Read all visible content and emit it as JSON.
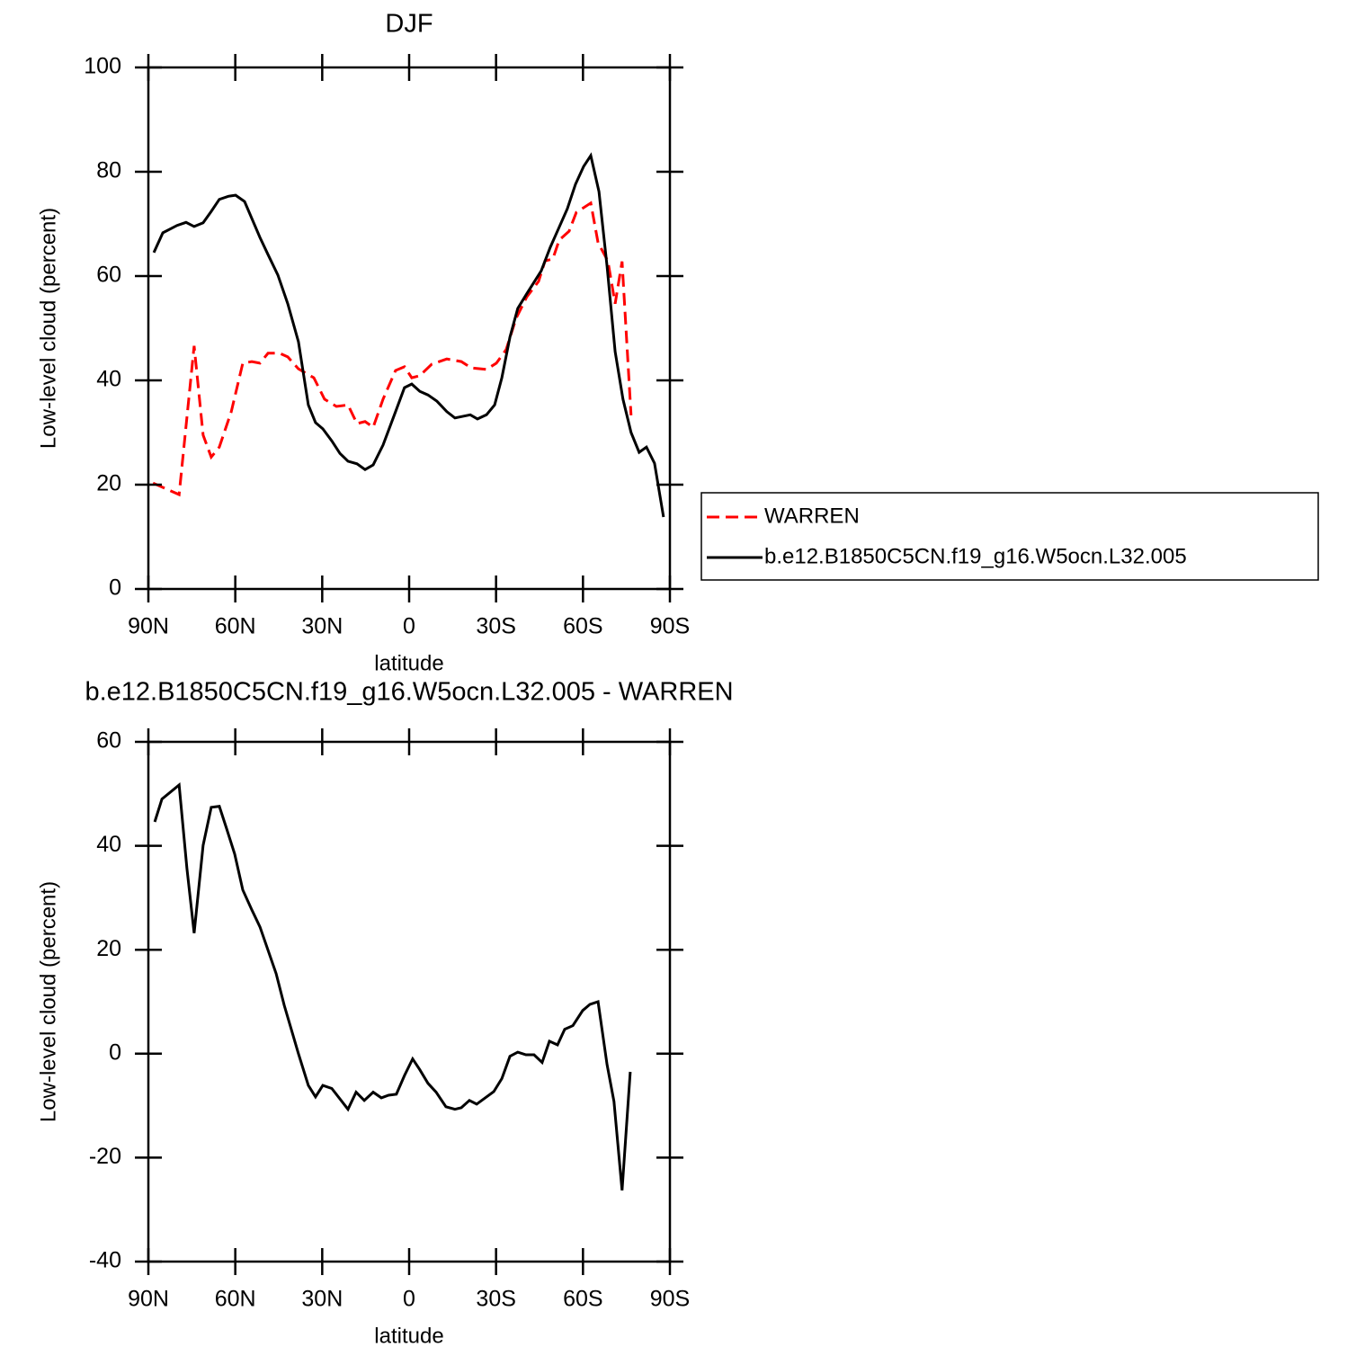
{
  "chart_data": [
    {
      "type": "line",
      "title": "DJF",
      "xlabel": "latitude",
      "ylabel": "Low-level cloud (percent)",
      "xlim": [
        90,
        -90
      ],
      "ylim": [
        0,
        100
      ],
      "xticks": [
        {
          "value": 90,
          "label": "90N"
        },
        {
          "value": 60,
          "label": "60N"
        },
        {
          "value": 30,
          "label": "30N"
        },
        0,
        {
          "value": -30,
          "label": "30S"
        },
        {
          "value": -60,
          "label": "60S"
        },
        {
          "value": -90,
          "label": "90S"
        }
      ],
      "yticks": [
        0,
        20,
        40,
        60,
        80,
        100
      ],
      "legend": "right",
      "series": [
        {
          "name": "WARREN",
          "color": "#ff0000",
          "dash": "dashed",
          "x": [
            88.4,
            79.4,
            74.2,
            71.1,
            68.3,
            65.5,
            61.4,
            57.4,
            54.3,
            51.5,
            48.7,
            44.7,
            41.9,
            38.2,
            32.9,
            29.2,
            25.1,
            21.1,
            18,
            15.2,
            12.4,
            9,
            4.7,
            1.6,
            -0.9,
            -3.7,
            -7.8,
            -13,
            -18,
            -21.4,
            -26.7,
            -30.1,
            -33.5,
            -36.9,
            -40.6,
            -44.7,
            -46.9,
            -49.6,
            -51.8,
            -55.2,
            -57.7,
            -62.7,
            -65.2,
            -68.6,
            -71.1,
            -73.5,
            -76.6
          ],
          "values": [
            20.3,
            18.1,
            46.6,
            29.5,
            25.3,
            27.2,
            34,
            43.3,
            43.6,
            43.3,
            45.2,
            45.2,
            44.5,
            42.2,
            40.5,
            36.4,
            35,
            35.3,
            31.7,
            32.1,
            31,
            36.4,
            41.9,
            42.6,
            40.5,
            40.9,
            43.1,
            44.1,
            43.6,
            42.4,
            42.1,
            43.3,
            45.9,
            51.9,
            56,
            59,
            62.9,
            63.3,
            66.9,
            68.6,
            72.2,
            74,
            66.4,
            62.9,
            54.7,
            62.8,
            33.3
          ]
        },
        {
          "name": "b.e12.B1850C5CN.f19_g16.W5ocn.L32.005",
          "color": "#000000",
          "dash": "solid",
          "x": [
            88.1,
            85,
            80.1,
            77,
            74.2,
            71.1,
            68.3,
            65.5,
            62.4,
            59.9,
            56.8,
            51.5,
            48.7,
            45.3,
            41.9,
            38.2,
            34.8,
            32.3,
            29.8,
            26.7,
            23.9,
            21.1,
            18,
            15.2,
            12.4,
            9,
            4.7,
            1.6,
            -0.9,
            -3.7,
            -6.5,
            -9.6,
            -13,
            -15.8,
            -21.1,
            -23.6,
            -26.7,
            -29.5,
            -32,
            -34.8,
            -37.5,
            -40.6,
            -45.6,
            -48.7,
            -51.5,
            -54.6,
            -57.4,
            -60.2,
            -62.7,
            -65.5,
            -68.3,
            -71.1,
            -73.8,
            -76.6,
            -79.4,
            -81.9,
            -84.7,
            -87.8
          ],
          "values": [
            64.5,
            68.3,
            69.7,
            70.3,
            69.5,
            70.2,
            72.4,
            74.7,
            75.3,
            75.5,
            74.3,
            67.4,
            64.1,
            60.2,
            54.7,
            47.4,
            35.3,
            31.9,
            30.7,
            28.4,
            26,
            24.5,
            24,
            22.9,
            23.8,
            27.6,
            34,
            38.6,
            39.3,
            37.9,
            37.2,
            36,
            34,
            32.8,
            33.4,
            32.6,
            33.4,
            35.3,
            40.5,
            48.3,
            53.8,
            56.6,
            61,
            65.5,
            69,
            72.9,
            77.6,
            81,
            83.1,
            76.2,
            61.9,
            45.5,
            36.4,
            30,
            26.2,
            27.2,
            24.1,
            13.8
          ]
        }
      ]
    },
    {
      "type": "line",
      "title": "b.e12.B1850C5CN.f19_g16.W5ocn.L32.005 - WARREN",
      "xlabel": "latitude",
      "ylabel": "Low-level cloud (percent)",
      "xlim": [
        90,
        -90
      ],
      "ylim": [
        -40,
        60
      ],
      "xticks": [
        {
          "value": 90,
          "label": "90N"
        },
        {
          "value": 60,
          "label": "60N"
        },
        {
          "value": 30,
          "label": "30N"
        },
        0,
        {
          "value": -30,
          "label": "30S"
        },
        {
          "value": -60,
          "label": "60S"
        },
        {
          "value": -90,
          "label": "90S"
        }
      ],
      "yticks": [
        -40,
        -20,
        0,
        20,
        40,
        60
      ],
      "series": [
        {
          "color": "#000000",
          "dash": "solid",
          "x": [
            87.8,
            85.3,
            79.4,
            76.7,
            74.2,
            71.1,
            68.3,
            65.5,
            63,
            60.2,
            57.4,
            54.3,
            51.5,
            45.9,
            43.1,
            38.2,
            34.8,
            32.3,
            29.8,
            26.7,
            21.1,
            18.3,
            15.5,
            12.4,
            9.6,
            7.1,
            4.4,
            1.6,
            -1.2,
            -3.7,
            -6.5,
            -9.3,
            -12.7,
            -15.8,
            -18,
            -20.8,
            -23.3,
            -29.2,
            -32,
            -34.8,
            -37.5,
            -40.3,
            -43.1,
            -45.9,
            -48.4,
            -51.2,
            -53.7,
            -56.5,
            -59.9,
            -62.4,
            -65.2,
            -68.3,
            -70.7,
            -73.5,
            -76.3
          ],
          "values": [
            44.6,
            49,
            51.7,
            35.6,
            23.2,
            40.1,
            47.4,
            47.6,
            43.3,
            38.4,
            31.5,
            27.7,
            24.4,
            15.4,
            9.3,
            0,
            -6.1,
            -8.3,
            -6.1,
            -6.7,
            -10.7,
            -7.4,
            -9,
            -7.4,
            -8.5,
            -8,
            -7.8,
            -4.2,
            -1,
            -3.1,
            -5.7,
            -7.4,
            -10.2,
            -10.7,
            -10.4,
            -9,
            -9.7,
            -7.3,
            -4.8,
            -0.5,
            0.3,
            -0.2,
            -0.2,
            -1.7,
            2.4,
            1.7,
            4.7,
            5.4,
            8.3,
            9.5,
            10,
            -2.1,
            -9.2,
            -26.3,
            -3.5
          ]
        }
      ]
    }
  ]
}
